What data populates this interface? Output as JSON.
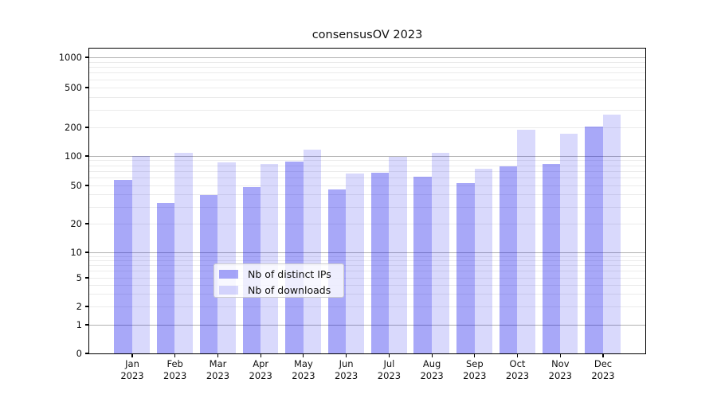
{
  "title": "consensusOV 2023",
  "chart_data": {
    "type": "bar",
    "title": "consensusOV 2023",
    "categories": [
      "Jan 2023",
      "Feb 2023",
      "Mar 2023",
      "Apr 2023",
      "May 2023",
      "Jun 2023",
      "Jul 2023",
      "Aug 2023",
      "Sep 2023",
      "Oct 2023",
      "Nov 2023",
      "Dec 2023"
    ],
    "x_tick_months": [
      "Jan",
      "Feb",
      "Mar",
      "Apr",
      "May",
      "Jun",
      "Jul",
      "Aug",
      "Sep",
      "Oct",
      "Nov",
      "Dec"
    ],
    "x_tick_year": "2023",
    "series": [
      {
        "name": "Nb of distinct IPs",
        "color": "rgba(3,3,235,0.345)",
        "color_hex_on_white": "#a8a8f8",
        "values": [
          57,
          33,
          40,
          48,
          88,
          45,
          67,
          61,
          53,
          78,
          82,
          205
        ]
      },
      {
        "name": "Nb of downloads",
        "color": "rgba(3,3,235,0.15)",
        "color_hex_on_white": "#d9d9fc",
        "values": [
          100,
          108,
          86,
          82,
          117,
          66,
          97,
          107,
          74,
          189,
          172,
          266
        ]
      }
    ],
    "yscale": "symlog",
    "y_ticks": [
      0,
      1,
      2,
      5,
      10,
      20,
      50,
      100,
      200,
      500,
      1000
    ],
    "ylim": [
      0,
      1260
    ],
    "grid": "both",
    "legend_position": "lower center"
  },
  "legend": {
    "items": [
      {
        "label": "Nb of distinct IPs",
        "color": "rgba(3,3,235,0.345)"
      },
      {
        "label": "Nb of downloads",
        "color": "rgba(3,3,235,0.15)"
      }
    ]
  },
  "colors": {
    "background": "#ffffff",
    "bar_distinct_ips": "#a8a8f8",
    "bar_downloads": "#d9d9fc",
    "grid_major": "#b2b2b2",
    "grid_minor": "#ebebeb",
    "spine": "#000000",
    "text": "#111111"
  }
}
